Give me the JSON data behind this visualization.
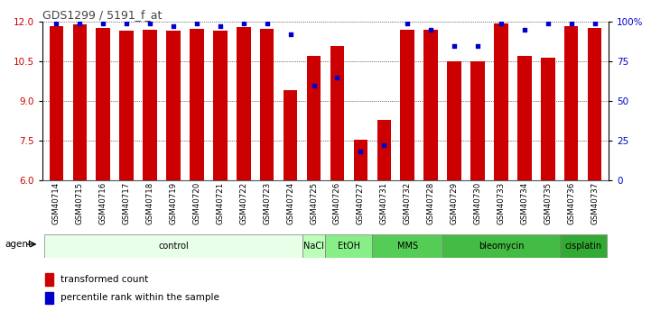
{
  "title": "GDS1299 / 5191_f_at",
  "samples": [
    "GSM40714",
    "GSM40715",
    "GSM40716",
    "GSM40717",
    "GSM40718",
    "GSM40719",
    "GSM40720",
    "GSM40721",
    "GSM40722",
    "GSM40723",
    "GSM40724",
    "GSM40725",
    "GSM40726",
    "GSM40727",
    "GSM40731",
    "GSM40732",
    "GSM40728",
    "GSM40729",
    "GSM40730",
    "GSM40733",
    "GSM40734",
    "GSM40735",
    "GSM40736",
    "GSM40737"
  ],
  "bar_values": [
    11.85,
    11.9,
    11.75,
    11.65,
    11.7,
    11.68,
    11.72,
    11.67,
    11.8,
    11.72,
    9.4,
    10.7,
    11.1,
    7.55,
    8.3,
    11.7,
    11.7,
    10.5,
    10.5,
    11.95,
    10.7,
    10.65,
    11.85,
    11.75
  ],
  "percentile_values": [
    99,
    99,
    99,
    99,
    99,
    97,
    99,
    97,
    99,
    99,
    92,
    60,
    65,
    18,
    22,
    99,
    95,
    85,
    85,
    99,
    95,
    99,
    99,
    99
  ],
  "y_min": 6,
  "y_max": 12,
  "y_ticks": [
    6,
    7.5,
    9,
    10.5,
    12
  ],
  "right_ticks": [
    0,
    25,
    50,
    75,
    100
  ],
  "bar_color": "#cc0000",
  "dot_color": "#0000cc",
  "groups": [
    {
      "label": "control",
      "start": 0,
      "end": 11,
      "color": "#e8ffe8"
    },
    {
      "label": "NaCl",
      "start": 11,
      "end": 12,
      "color": "#bbffbb"
    },
    {
      "label": "EtOH",
      "start": 12,
      "end": 14,
      "color": "#88ee88"
    },
    {
      "label": "MMS",
      "start": 14,
      "end": 17,
      "color": "#55cc55"
    },
    {
      "label": "bleomycin",
      "start": 17,
      "end": 22,
      "color": "#44bb44"
    },
    {
      "label": "cisplatin",
      "start": 22,
      "end": 24,
      "color": "#33aa33"
    }
  ],
  "legend_bar_label": "transformed count",
  "legend_dot_label": "percentile rank within the sample",
  "xlabel_agent": "agent",
  "title_color": "#444444",
  "left_tick_color": "#cc0000",
  "right_tick_color": "#0000cc",
  "grid_color": "#555555",
  "bar_width": 0.6
}
